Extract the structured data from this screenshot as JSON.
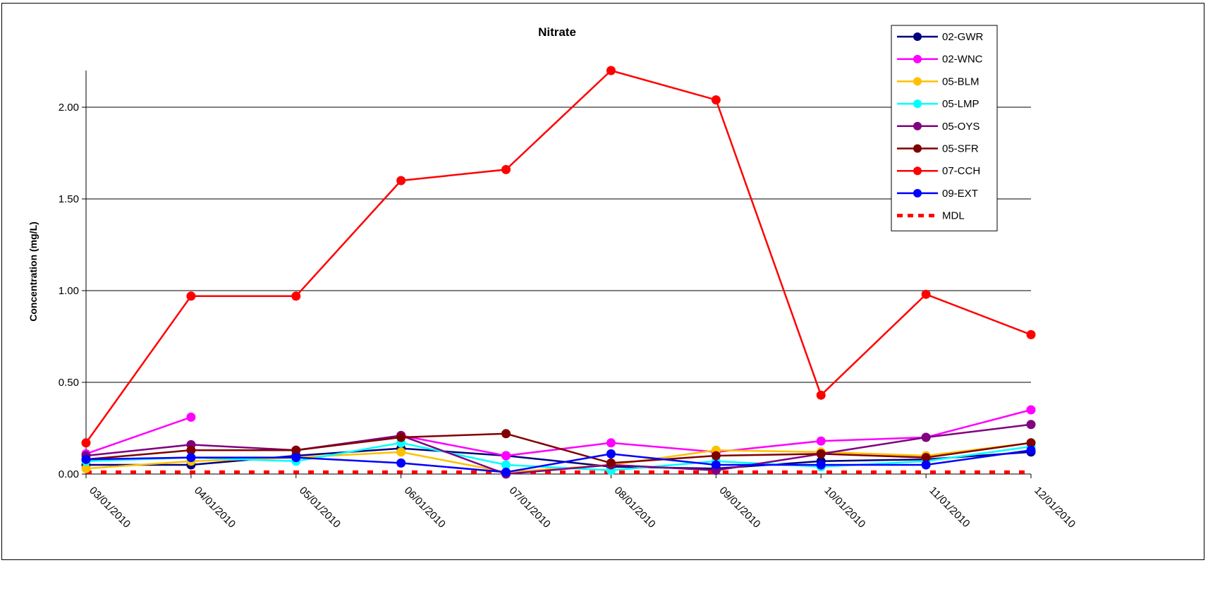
{
  "chart_data": {
    "type": "line",
    "title": "Nitrate",
    "ylabel": "Concentration (mg/L)",
    "xlabel": "",
    "ylim": [
      0,
      2.2
    ],
    "yticks": [
      "0.00",
      "0.50",
      "1.00",
      "1.50",
      "2.00"
    ],
    "ytick_values": [
      0,
      0.5,
      1.0,
      1.5,
      2.0
    ],
    "grid": "horizontal",
    "legend_position": "top-right",
    "categories": [
      "03/01/2010",
      "04/01/2010",
      "05/01/2010",
      "06/01/2010",
      "07/01/2010",
      "08/01/2010",
      "09/01/2010",
      "10/01/2010",
      "11/01/2010",
      "12/01/2010"
    ],
    "series": [
      {
        "name": "02-GWR",
        "color": "#000080",
        "values": [
          0.05,
          0.05,
          0.1,
          0.14,
          0.1,
          0.04,
          0.03,
          0.07,
          0.08,
          0.12
        ]
      },
      {
        "name": "02-WNC",
        "color": "#FF00FF",
        "values": [
          0.11,
          0.31,
          null,
          0.21,
          0.1,
          0.17,
          0.12,
          0.18,
          0.2,
          0.35
        ]
      },
      {
        "name": "05-BLM",
        "color": "#FFC000",
        "values": [
          0.03,
          0.07,
          0.09,
          0.12,
          0.01,
          0.05,
          0.13,
          0.12,
          0.1,
          0.17
        ]
      },
      {
        "name": "05-LMP",
        "color": "#00FFFF",
        "values": [
          0.07,
          0.09,
          0.07,
          0.17,
          0.05,
          0.02,
          0.07,
          0.04,
          0.07,
          0.15
        ]
      },
      {
        "name": "05-OYS",
        "color": "#800080",
        "values": [
          0.1,
          0.16,
          0.13,
          0.21,
          0.0,
          0.05,
          0.02,
          0.11,
          0.2,
          0.27
        ]
      },
      {
        "name": "05-SFR",
        "color": "#800000",
        "values": [
          0.08,
          0.13,
          0.13,
          0.2,
          0.22,
          0.06,
          0.1,
          0.11,
          0.09,
          0.17
        ]
      },
      {
        "name": "07-CCH",
        "color": "#FF0000",
        "values": [
          0.17,
          0.97,
          0.97,
          1.6,
          1.66,
          2.2,
          2.04,
          0.43,
          0.98,
          0.76
        ]
      },
      {
        "name": "09-EXT",
        "color": "#0000FF",
        "values": [
          0.08,
          0.09,
          0.09,
          0.06,
          0.01,
          0.11,
          0.05,
          0.05,
          0.05,
          0.13
        ]
      }
    ],
    "reference_lines": [
      {
        "name": "MDL",
        "color": "#FF0000",
        "style": "dashed",
        "value": 0.01
      }
    ]
  }
}
